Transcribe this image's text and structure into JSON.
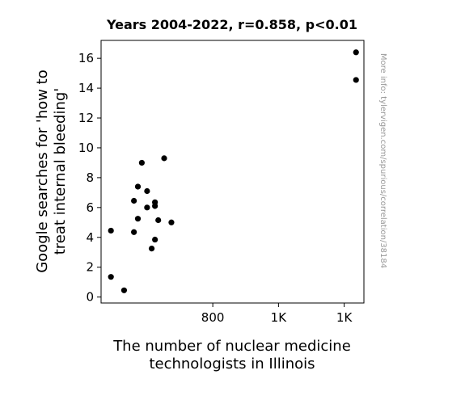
{
  "chart_data": {
    "type": "scatter",
    "title": "Years 2004-2022, r=0.858, p<0.01",
    "xlabel_lines": [
      "The number of nuclear medicine",
      "technologists in Illinois"
    ],
    "ylabel_lines": [
      "Google searches for 'how to",
      "treat internal bleeding'"
    ],
    "watermark": "More info: tylervigen.com/spurious/correlation/38184",
    "xlim": [
      630,
      1030
    ],
    "ylim": [
      -0.4,
      17.2
    ],
    "x_ticks": [
      {
        "value": 800,
        "label": "800"
      },
      {
        "value": 900,
        "label": "1K"
      },
      {
        "value": 1000,
        "label": "1K"
      }
    ],
    "y_ticks": [
      {
        "value": 0,
        "label": "0"
      },
      {
        "value": 2,
        "label": "2"
      },
      {
        "value": 4,
        "label": "4"
      },
      {
        "value": 6,
        "label": "6"
      },
      {
        "value": 8,
        "label": "8"
      },
      {
        "value": 10,
        "label": "10"
      },
      {
        "value": 12,
        "label": "12"
      },
      {
        "value": 14,
        "label": "14"
      },
      {
        "value": 16,
        "label": "16"
      }
    ],
    "grid": false,
    "marker_color": "#000000",
    "points": [
      {
        "x": 645,
        "y": 4.45
      },
      {
        "x": 645,
        "y": 1.35
      },
      {
        "x": 665,
        "y": 0.45
      },
      {
        "x": 680,
        "y": 6.45
      },
      {
        "x": 680,
        "y": 4.35
      },
      {
        "x": 686,
        "y": 7.4
      },
      {
        "x": 686,
        "y": 5.25
      },
      {
        "x": 692,
        "y": 9.0
      },
      {
        "x": 700,
        "y": 7.1
      },
      {
        "x": 700,
        "y": 6.0
      },
      {
        "x": 707,
        "y": 3.25
      },
      {
        "x": 712,
        "y": 6.35
      },
      {
        "x": 712,
        "y": 6.1
      },
      {
        "x": 712,
        "y": 3.85
      },
      {
        "x": 717,
        "y": 5.15
      },
      {
        "x": 726,
        "y": 9.3
      },
      {
        "x": 737,
        "y": 5.0
      },
      {
        "x": 1018,
        "y": 16.4
      },
      {
        "x": 1018,
        "y": 14.55
      }
    ]
  }
}
